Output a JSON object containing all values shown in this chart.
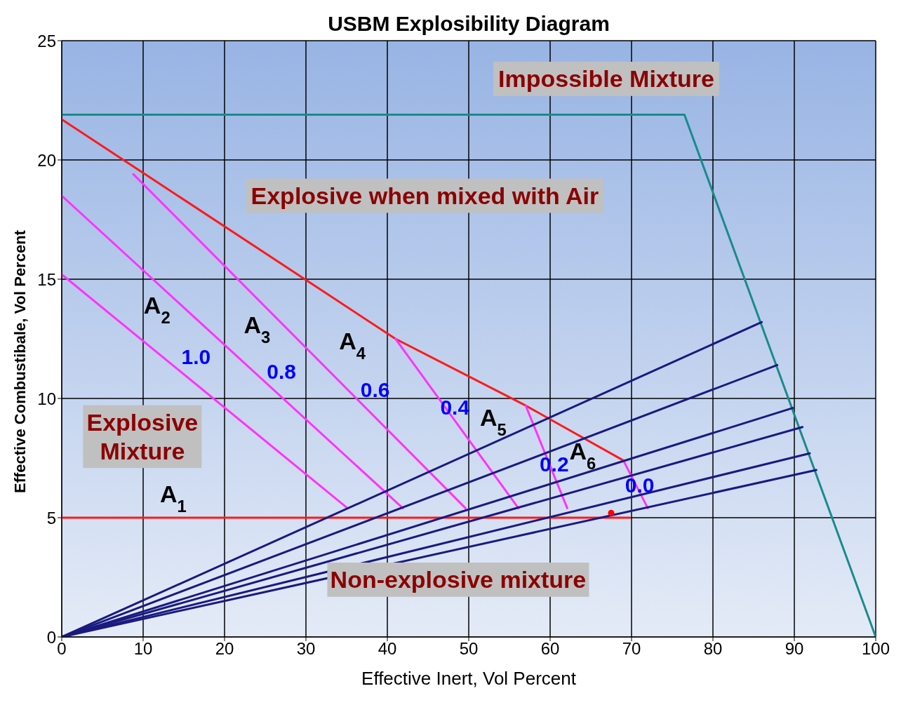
{
  "chart_data": {
    "type": "line",
    "title": "USBM Explosibility Diagram",
    "xlabel": "Effective Inert, Vol Percent",
    "ylabel": "Effective Combustibale, Vol Percent",
    "xlim": [
      0,
      100
    ],
    "xticks": [
      0,
      10,
      20,
      30,
      40,
      50,
      60,
      70,
      80,
      90,
      100
    ],
    "ylim": [
      0,
      25
    ],
    "yticks": [
      0,
      5,
      10,
      15,
      20,
      25
    ],
    "grid": true,
    "marker": "none",
    "line_style": "solid",
    "series": [
      {
        "color": "#1a8a8a",
        "x": [
          0,
          76.5,
          100
        ],
        "values": [
          21.9,
          21.9,
          0
        ]
      },
      {
        "color": "#ff1a1a",
        "x": [
          0,
          41,
          57,
          69
        ],
        "values": [
          21.7,
          12.5,
          9.7,
          7.4
        ]
      },
      {
        "color": "#ff1a1a",
        "x": [
          0,
          69.8
        ],
        "values": [
          5,
          5
        ]
      },
      {
        "color": "#ff33ff",
        "x": [
          0,
          35.1
        ],
        "values": [
          15.2,
          5.4
        ]
      },
      {
        "color": "#ff33ff",
        "x": [
          0,
          41.9
        ],
        "values": [
          18.5,
          5.4
        ]
      },
      {
        "color": "#ff33ff",
        "x": [
          8.8,
          49.6
        ],
        "values": [
          19.4,
          5.4
        ]
      },
      {
        "color": "#ff33ff",
        "x": [
          41,
          56.1
        ],
        "values": [
          12.5,
          5.4
        ]
      },
      {
        "color": "#ff33ff",
        "x": [
          57,
          62.1
        ],
        "values": [
          9.7,
          5.4
        ]
      },
      {
        "color": "#ff33ff",
        "x": [
          69,
          72
        ],
        "values": [
          7.4,
          5.4
        ]
      },
      {
        "color": "#1a1a80",
        "x": [
          0,
          86
        ],
        "values": [
          0,
          13.2
        ]
      },
      {
        "color": "#1a1a80",
        "x": [
          0,
          87.9
        ],
        "values": [
          0,
          11.4
        ]
      },
      {
        "color": "#1a1a80",
        "x": [
          0,
          89.8
        ],
        "values": [
          0,
          9.6
        ]
      },
      {
        "color": "#1a1a80",
        "x": [
          0,
          91
        ],
        "values": [
          0,
          8.8
        ]
      },
      {
        "color": "#1a1a80",
        "x": [
          0,
          91.9
        ],
        "values": [
          0,
          7.7
        ]
      },
      {
        "color": "#1a1a80",
        "x": [
          0,
          92.7
        ],
        "values": [
          0,
          7
        ]
      },
      {
        "type": "scatter",
        "marker": "circle",
        "color": "#ff0000",
        "x": [
          67.5
        ],
        "values": [
          5.2
        ]
      }
    ],
    "annotations": [
      "Impossible Mixture",
      "Explosive when mixed with Air",
      "Explosive\nMixture",
      "Non-explosive mixture",
      "A$_{1}$",
      "A$_{2}$",
      "A$_{3}$",
      "A$_{4}$",
      "A$_{5}$",
      "A$_{6}$",
      "1.0",
      "0.8",
      "0.6",
      "0.4",
      "0.2",
      "0.0"
    ]
  }
}
